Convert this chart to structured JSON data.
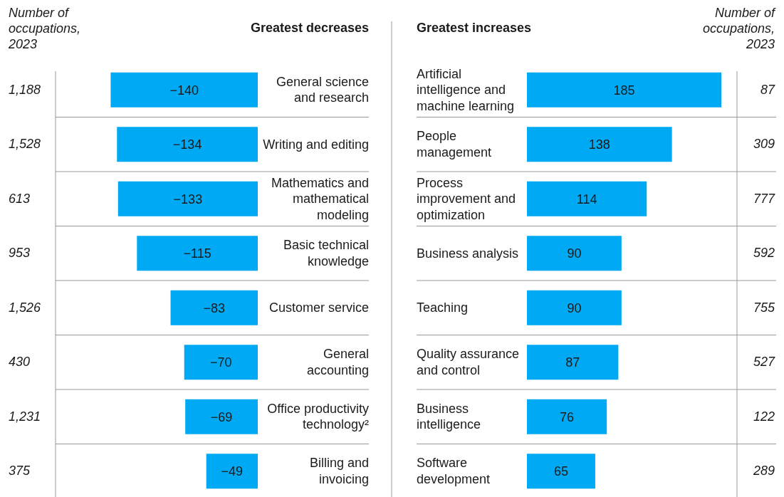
{
  "chart_data": [
    {
      "type": "bar",
      "orientation": "horizontal",
      "title": "Greatest decreases",
      "ylabel": "Number of occupations, 2023",
      "color": "#00a9f4",
      "data_labels": true,
      "categories": [
        "General science and research",
        "Writing and editing",
        "Mathematics and mathematical modeling",
        "Basic technical knowledge",
        "Customer service",
        "General accounting",
        "Office productivity technology²",
        "Billing and invoicing"
      ],
      "values": [
        -140,
        -134,
        -133,
        -115,
        -83,
        -70,
        -69,
        -49
      ],
      "annotations": [
        "1,188",
        "1,528",
        "613",
        "953",
        "1,526",
        "430",
        "1,231",
        "375"
      ]
    },
    {
      "type": "bar",
      "orientation": "horizontal",
      "title": "Greatest increases",
      "ylabel": "Number of occupations, 2023",
      "color": "#00a9f4",
      "data_labels": true,
      "categories": [
        "Artificial intelligence and machine learning",
        "People management",
        "Process improvement and optimization",
        "Business analysis",
        "Teaching",
        "Quality assurance and control",
        "Business intelligence",
        "Software development"
      ],
      "values": [
        185,
        138,
        114,
        90,
        90,
        87,
        76,
        65
      ],
      "annotations": [
        "87",
        "309",
        "777",
        "592",
        "755",
        "527",
        "122",
        "289"
      ]
    }
  ]
}
